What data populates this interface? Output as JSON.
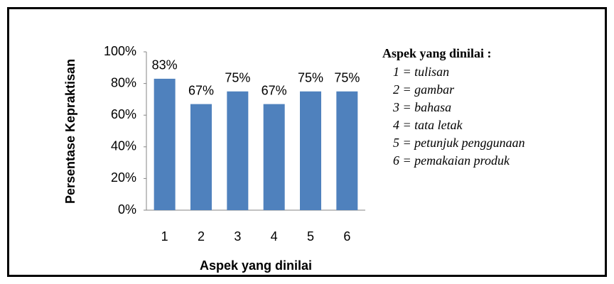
{
  "chart_data": {
    "type": "bar",
    "x_label": "Aspek yang dinilai",
    "y_label": "Persentase Kepraktisan",
    "categories": [
      "1",
      "2",
      "3",
      "4",
      "5",
      "6"
    ],
    "values": [
      83,
      67,
      75,
      67,
      75,
      75
    ],
    "value_labels": [
      "83%",
      "67%",
      "75%",
      "67%",
      "75%",
      "75%"
    ],
    "color": "#4f81bd",
    "ylim": [
      0,
      100
    ],
    "yticks": [
      {
        "value": 0,
        "label": "0%"
      },
      {
        "value": 20,
        "label": "20%"
      },
      {
        "value": 40,
        "label": "40%"
      },
      {
        "value": 60,
        "label": "60%"
      },
      {
        "value": 80,
        "label": "80%"
      },
      {
        "value": 100,
        "label": "100%"
      }
    ],
    "grid": false,
    "annotation": {
      "title": "Aspek yang dinilai :",
      "items": [
        "1 = tulisan",
        "2 = gambar",
        "3 = bahasa",
        "4 = tata letak",
        "5 = petunjuk penggunaan",
        "6 = pemakaian produk"
      ]
    }
  }
}
